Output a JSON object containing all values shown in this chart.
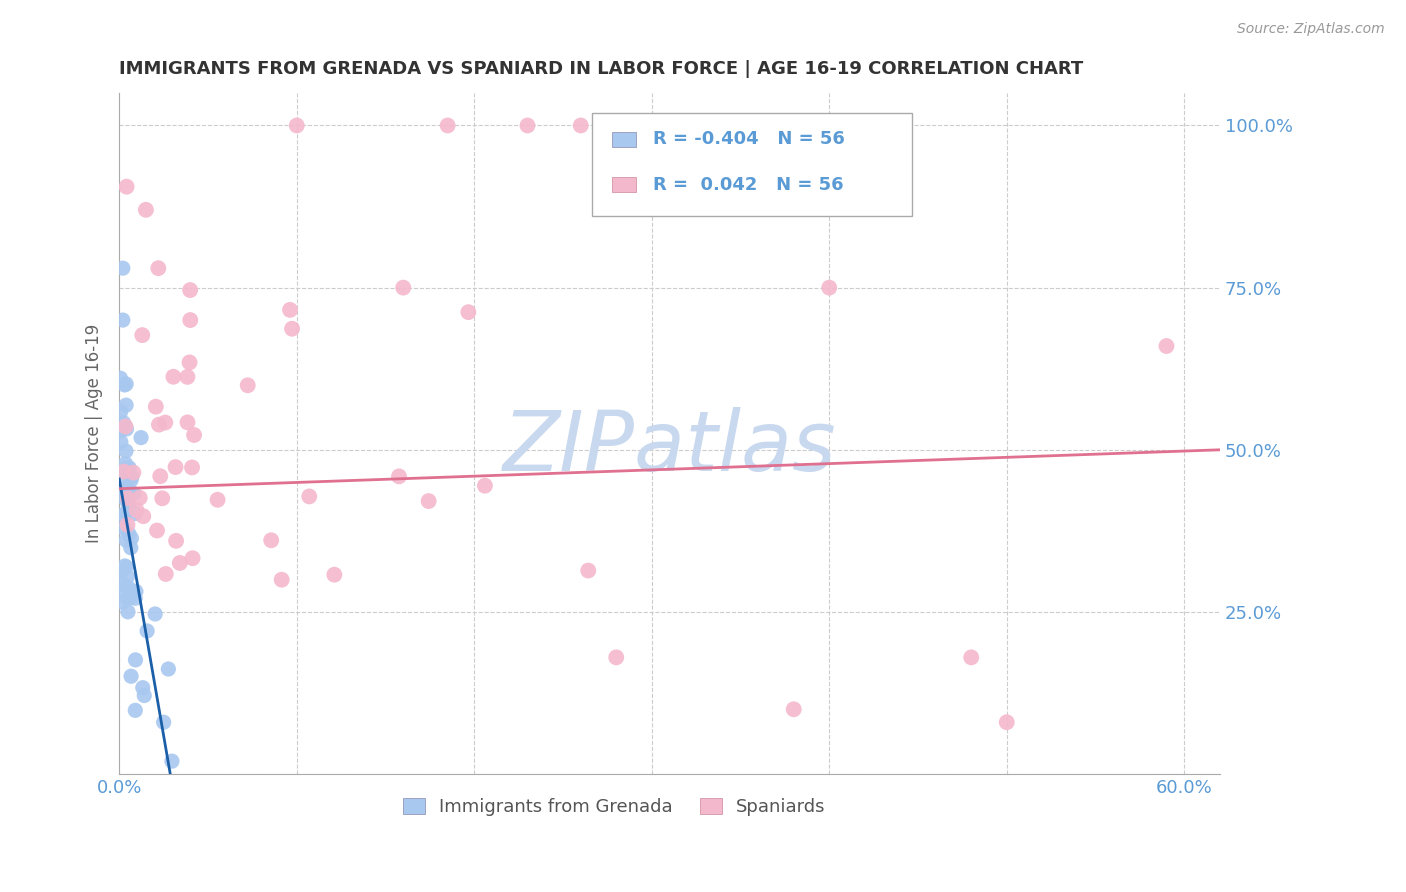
{
  "title": "IMMIGRANTS FROM GRENADA VS SPANIARD IN LABOR FORCE | AGE 16-19 CORRELATION CHART",
  "source": "Source: ZipAtlas.com",
  "ylabel": "In Labor Force | Age 16-19",
  "blue_R": "-0.404",
  "blue_N": "56",
  "pink_R": "0.042",
  "pink_N": "56",
  "blue_color": "#a8c8f0",
  "pink_color": "#f4b8cc",
  "blue_line_color": "#1a5fa8",
  "pink_line_color": "#e07090",
  "grid_color": "#cccccc",
  "axis_label_color": "#5b9bd5",
  "watermark_color": "#c8d8ee",
  "xlim": [
    0.0,
    0.62
  ],
  "ylim": [
    0.0,
    1.05
  ],
  "blue_trend_x0": 0.0,
  "blue_trend_y0": 0.455,
  "blue_trend_x1": 0.03,
  "blue_trend_y1": -0.02,
  "pink_trend_x0": 0.0,
  "pink_trend_y0": 0.44,
  "pink_trend_x1": 0.62,
  "pink_trend_y1": 0.5
}
